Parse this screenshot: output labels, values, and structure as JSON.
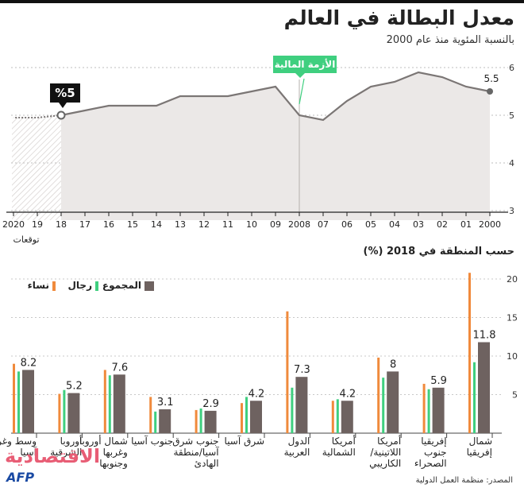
{
  "title": "معدل البطالة في العالم",
  "subtitle": "بالنسبة المئوية منذ عام 2000",
  "annotation_crisis": "الأزمة المالية",
  "annotation_pct": "%5",
  "section2_title": "حسب المنطقة في 2018 (%)",
  "source": "المصدر: منظمة العمل الدولية",
  "logo_text": "الاقتصادية",
  "logo_afp": "AFP",
  "colors": {
    "women": "#f08a3c",
    "men": "#3fcf7f",
    "total": "#6e6260",
    "area": "#ebe8e7",
    "line": "#7b7675"
  },
  "chart_data": [
    {
      "type": "area",
      "title": "معدل البطالة في العالم",
      "subtitle": "بالنسبة المئوية منذ عام 2000",
      "x": [
        "2000",
        "01",
        "02",
        "03",
        "04",
        "05",
        "06",
        "07",
        "2008",
        "09",
        "10",
        "11",
        "12",
        "13",
        "14",
        "15",
        "16",
        "17",
        "18",
        "19",
        "2020"
      ],
      "x_extra_label": "توقعات",
      "values": [
        5.5,
        5.6,
        5.8,
        5.9,
        5.7,
        5.6,
        5.3,
        4.9,
        5.0,
        5.6,
        5.5,
        5.4,
        5.4,
        5.4,
        5.2,
        5.2,
        5.2,
        5.1,
        5.0,
        4.95,
        4.95
      ],
      "forecast_from": "18",
      "ylim": [
        2.8,
        6.2
      ],
      "yticks": [
        3,
        4,
        5,
        6
      ],
      "end_label": "5.5",
      "grid": true
    },
    {
      "type": "bar",
      "title": "حسب المنطقة في 2018 (%)",
      "categories": [
        "شمال إفريقيا",
        "إفريقيا جنوب الصحراء",
        "أمريكا اللاتينية/ الكاريبي",
        "أمريكا الشمالية",
        "الدول العربية",
        "شرق آسيا",
        "جنوب شرق آسيا/منطقة الهادئ",
        "جنوب آسيا",
        "شمال أوروبا وغربها وجنوبها",
        "أوروبا الشرقية",
        "وسط وغرب آسيا"
      ],
      "series": [
        {
          "name": "نساء",
          "values": [
            20.8,
            6.4,
            9.8,
            4.2,
            15.8,
            3.9,
            3.0,
            4.7,
            8.2,
            5.1,
            9.0
          ]
        },
        {
          "name": "رجال",
          "values": [
            9.2,
            5.7,
            7.2,
            4.4,
            5.9,
            4.7,
            3.2,
            2.8,
            7.5,
            5.6,
            8.0
          ]
        },
        {
          "name": "المجموع",
          "values": [
            11.8,
            5.9,
            8.0,
            4.2,
            7.3,
            4.2,
            2.9,
            3.1,
            7.6,
            5.2,
            8.2
          ]
        }
      ],
      "total_labels": [
        "11.8",
        "5.9",
        "8",
        "4.2",
        "7.3",
        "4.2",
        "2.9",
        "3.1",
        "7.6",
        "5.2",
        "8.2"
      ],
      "ylim": [
        0,
        21
      ],
      "yticks": [
        5,
        10,
        15,
        20
      ],
      "legend": "top-right",
      "grid": true
    }
  ]
}
